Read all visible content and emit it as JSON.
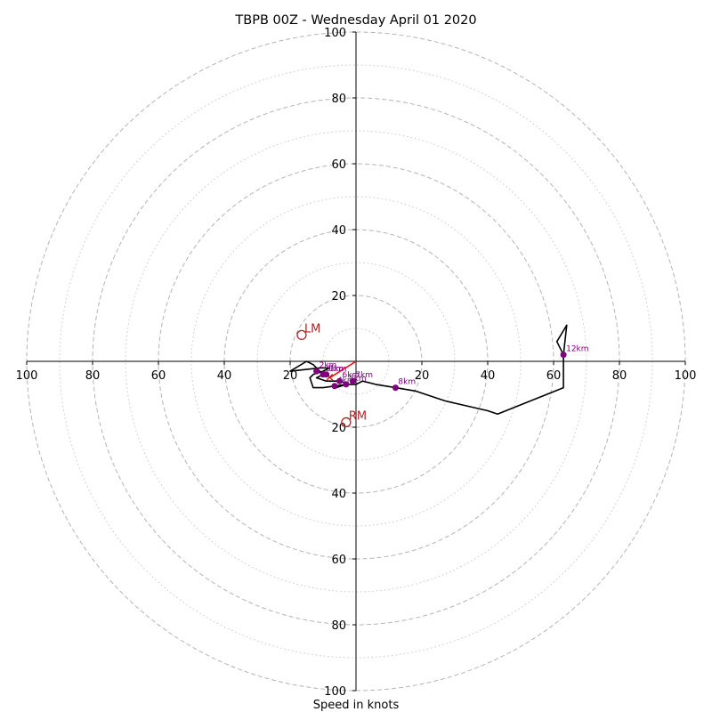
{
  "chart_data": {
    "type": "hodograph",
    "title": "TBPB 00Z - Wednesday April 01 2020",
    "xlabel": "Speed in knots",
    "range": [
      -100,
      100
    ],
    "rings_major": [
      20,
      40,
      60,
      80,
      100
    ],
    "rings_minor": [
      10,
      30,
      50,
      70,
      90
    ],
    "x_ticks": [
      {
        "value": -100,
        "label": "100"
      },
      {
        "value": -80,
        "label": "80"
      },
      {
        "value": -60,
        "label": "60"
      },
      {
        "value": -40,
        "label": "40"
      },
      {
        "value": -20,
        "label": "20"
      },
      {
        "value": 20,
        "label": "20"
      },
      {
        "value": 40,
        "label": "40"
      },
      {
        "value": 60,
        "label": "60"
      },
      {
        "value": 80,
        "label": "80"
      },
      {
        "value": 100,
        "label": "100"
      }
    ],
    "y_ticks": [
      {
        "value": 100,
        "label": "100"
      },
      {
        "value": 80,
        "label": "80"
      },
      {
        "value": 60,
        "label": "60"
      },
      {
        "value": 40,
        "label": "40"
      },
      {
        "value": 20,
        "label": "20"
      },
      {
        "value": -20,
        "label": "20"
      },
      {
        "value": -40,
        "label": "40"
      },
      {
        "value": -60,
        "label": "60"
      },
      {
        "value": -80,
        "label": "80"
      },
      {
        "value": -100,
        "label": "100"
      }
    ],
    "trace_color": "#000000",
    "trace": [
      [
        -6,
        -8
      ],
      [
        -3,
        -7
      ],
      [
        -10,
        -8
      ],
      [
        -13,
        -8
      ],
      [
        -14,
        -5
      ],
      [
        -13,
        -4
      ],
      [
        -10,
        -3
      ],
      [
        -8,
        -2
      ],
      [
        -11,
        -2
      ],
      [
        -20,
        -3
      ],
      [
        -15,
        0
      ],
      [
        -13,
        -1
      ],
      [
        -11,
        -3
      ],
      [
        -10,
        -4
      ],
      [
        -12,
        -5
      ],
      [
        -9,
        -6
      ],
      [
        -5,
        -6
      ],
      [
        -2,
        -7
      ],
      [
        0,
        -7
      ],
      [
        2,
        -6
      ],
      [
        6,
        -7
      ],
      [
        12,
        -8
      ],
      [
        18,
        -9
      ],
      [
        27,
        -12
      ],
      [
        40,
        -15
      ],
      [
        43,
        -16
      ],
      [
        63,
        -8
      ],
      [
        63,
        2
      ],
      [
        64,
        11
      ],
      [
        61,
        6
      ],
      [
        62,
        4
      ],
      [
        63,
        2
      ]
    ],
    "height_markers_color": "#800080",
    "height_markers": [
      {
        "label": "2km",
        "u": -12,
        "v": -3
      },
      {
        "label": "3km",
        "u": -10,
        "v": -4
      },
      {
        "label": "1km",
        "u": -9,
        "v": -4
      },
      {
        "label": "6km",
        "u": -5,
        "v": -6
      },
      {
        "label": "7km",
        "u": -1,
        "v": -6
      },
      {
        "label": "5km",
        "u": -3,
        "v": -7
      },
      {
        "label": "4km",
        "u": -6.5,
        "v": -7.5
      },
      {
        "label": "8km",
        "u": 12,
        "v": -8
      },
      {
        "label": "12km",
        "u": 63,
        "v": 2
      }
    ],
    "storm_motion_color": "#b22222",
    "storm_motion": [
      {
        "label": "LM",
        "u": -16.5,
        "v": 8
      },
      {
        "label": "RM",
        "u": -3,
        "v": -18.5
      }
    ],
    "shear_vector": {
      "color": "#ff0000",
      "from": [
        -8,
        -5
      ],
      "to": [
        0,
        0
      ]
    }
  }
}
